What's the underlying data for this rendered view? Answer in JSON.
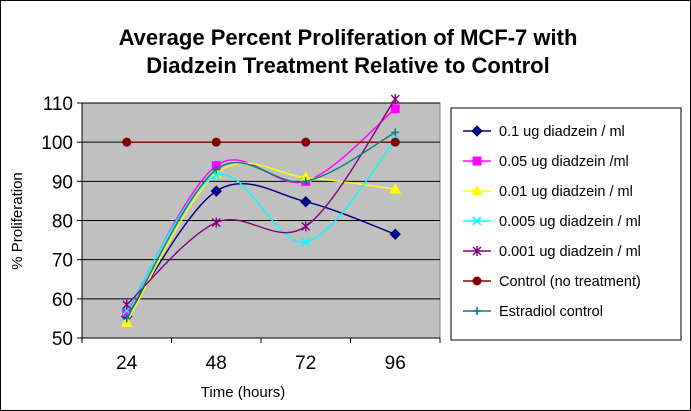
{
  "chart_data": {
    "type": "line",
    "title_line1": "Average Percent Proliferation of MCF-7 with",
    "title_line2": "Diadzein Treatment Relative to Control",
    "xlabel": "Time (hours)",
    "ylabel": "% Proliferation",
    "categories": [
      "24",
      "48",
      "72",
      "96"
    ],
    "yticks": [
      "50",
      "60",
      "70",
      "80",
      "90",
      "100",
      "110"
    ],
    "ylim": [
      50,
      110
    ],
    "grid": true,
    "plot_background": "#c0c0c0",
    "legend_position": "right",
    "series": [
      {
        "name": "0.1 ug diadzein / ml",
        "values": [
          55.5,
          87.5,
          84.8,
          76.5
        ],
        "color": "#000080",
        "marker": "diamond"
      },
      {
        "name": "0.05 ug diadzein /ml",
        "values": [
          56.5,
          94,
          90,
          108.5
        ],
        "color": "#ff00ff",
        "marker": "square"
      },
      {
        "name": "0.01 ug diadzein / ml",
        "values": [
          54,
          92,
          91,
          88
        ],
        "color": "#ffff00",
        "marker": "triangle"
      },
      {
        "name": "0.005 ug diadzein / ml",
        "values": [
          57,
          91.5,
          74.5,
          100.5
        ],
        "color": "#00ffff",
        "marker": "x"
      },
      {
        "name": "0.001 ug diadzein / ml",
        "values": [
          58.5,
          79.5,
          78.5,
          111
        ],
        "color": "#800080",
        "marker": "star"
      },
      {
        "name": "Control (no treatment)",
        "values": [
          100,
          100,
          100,
          100
        ],
        "color": "#800000",
        "marker": "circle"
      },
      {
        "name": "Estradiol control",
        "values": [
          55,
          93,
          90,
          102.5
        ],
        "color": "#008080",
        "marker": "plus"
      }
    ]
  }
}
